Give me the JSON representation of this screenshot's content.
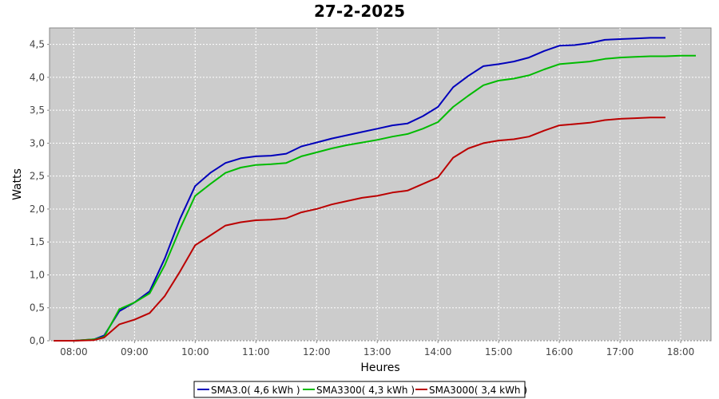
{
  "chart_data": {
    "type": "line",
    "title": "27-2-2025",
    "xlabel": "Heures",
    "ylabel": "Watts",
    "xlim": [
      "07:36",
      "18:30"
    ],
    "ylim": [
      0,
      4.75
    ],
    "x_ticks": [
      "08:00",
      "09:00",
      "10:00",
      "11:00",
      "12:00",
      "13:00",
      "14:00",
      "15:00",
      "16:00",
      "17:00",
      "18:00"
    ],
    "y_ticks": [
      "0,0",
      "0,5",
      "1,0",
      "1,5",
      "2,0",
      "2,5",
      "3,0",
      "3,5",
      "4,0",
      "4,5"
    ],
    "grid": true,
    "legend_position": "bottom",
    "series": [
      {
        "name": "SMA3.0( 4,6 kWh )",
        "color": "#0000bb",
        "x": [
          "07:40",
          "08:00",
          "08:20",
          "08:30",
          "08:45",
          "09:00",
          "09:15",
          "09:30",
          "09:45",
          "10:00",
          "10:15",
          "10:30",
          "10:45",
          "11:00",
          "11:15",
          "11:30",
          "11:45",
          "12:00",
          "12:15",
          "12:30",
          "12:45",
          "13:00",
          "13:15",
          "13:30",
          "13:45",
          "14:00",
          "14:15",
          "14:30",
          "14:45",
          "15:00",
          "15:15",
          "15:30",
          "15:45",
          "16:00",
          "16:15",
          "16:30",
          "16:45",
          "17:00",
          "17:15",
          "17:30",
          "17:45"
        ],
        "y": [
          0,
          0,
          0.02,
          0.08,
          0.45,
          0.58,
          0.75,
          1.25,
          1.85,
          2.35,
          2.55,
          2.7,
          2.77,
          2.8,
          2.81,
          2.84,
          2.95,
          3.01,
          3.07,
          3.12,
          3.17,
          3.22,
          3.27,
          3.3,
          3.41,
          3.55,
          3.85,
          4.02,
          4.17,
          4.2,
          4.24,
          4.3,
          4.4,
          4.48,
          4.49,
          4.52,
          4.57,
          4.58,
          4.59,
          4.6,
          4.6
        ]
      },
      {
        "name": "SMA3300( 4,3 kWh )",
        "color": "#00bb00",
        "x": [
          "07:40",
          "08:00",
          "08:20",
          "08:30",
          "08:45",
          "09:00",
          "09:15",
          "09:30",
          "09:45",
          "10:00",
          "10:15",
          "10:30",
          "10:45",
          "11:00",
          "11:15",
          "11:30",
          "11:45",
          "12:00",
          "12:15",
          "12:30",
          "12:45",
          "13:00",
          "13:15",
          "13:30",
          "13:45",
          "14:00",
          "14:15",
          "14:30",
          "14:45",
          "15:00",
          "15:15",
          "15:30",
          "15:45",
          "16:00",
          "16:15",
          "16:30",
          "16:45",
          "17:00",
          "17:15",
          "17:30",
          "17:45",
          "18:00",
          "18:15"
        ],
        "y": [
          0,
          0,
          0.02,
          0.06,
          0.48,
          0.58,
          0.72,
          1.15,
          1.7,
          2.2,
          2.38,
          2.55,
          2.63,
          2.67,
          2.68,
          2.7,
          2.8,
          2.86,
          2.92,
          2.97,
          3.01,
          3.05,
          3.1,
          3.14,
          3.22,
          3.32,
          3.55,
          3.72,
          3.88,
          3.95,
          3.98,
          4.03,
          4.12,
          4.2,
          4.22,
          4.24,
          4.28,
          4.3,
          4.31,
          4.32,
          4.32,
          4.33,
          4.33
        ]
      },
      {
        "name": "SMA3000( 3,4 kWh )",
        "color": "#bb0000",
        "x": [
          "07:40",
          "08:00",
          "08:20",
          "08:30",
          "08:45",
          "09:00",
          "09:15",
          "09:30",
          "09:45",
          "10:00",
          "10:15",
          "10:30",
          "10:45",
          "11:00",
          "11:15",
          "11:30",
          "11:45",
          "12:00",
          "12:15",
          "12:30",
          "12:45",
          "13:00",
          "13:15",
          "13:30",
          "13:45",
          "14:00",
          "14:15",
          "14:30",
          "14:45",
          "15:00",
          "15:15",
          "15:30",
          "15:45",
          "16:00",
          "16:15",
          "16:30",
          "16:45",
          "17:00",
          "17:15",
          "17:30",
          "17:45"
        ],
        "y": [
          0,
          0,
          0.01,
          0.05,
          0.25,
          0.32,
          0.42,
          0.68,
          1.05,
          1.45,
          1.6,
          1.75,
          1.8,
          1.83,
          1.84,
          1.86,
          1.95,
          2.0,
          2.07,
          2.12,
          2.17,
          2.2,
          2.25,
          2.28,
          2.38,
          2.48,
          2.78,
          2.92,
          3.0,
          3.04,
          3.06,
          3.1,
          3.19,
          3.27,
          3.29,
          3.31,
          3.35,
          3.37,
          3.38,
          3.39,
          3.39
        ]
      }
    ]
  }
}
